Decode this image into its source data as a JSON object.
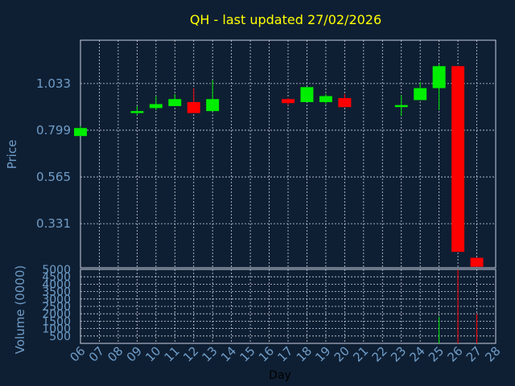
{
  "chart_data": [
    {
      "type": "candlestick",
      "title": "QH - last updated 27/02/2026",
      "ylabel": "Price",
      "ylim": [
        0.11,
        1.25
      ],
      "yticks": [
        "0.331",
        "0.565",
        "0.799",
        "1.033"
      ],
      "ytick_values": [
        0.331,
        0.565,
        0.799,
        1.033
      ],
      "x": [
        6,
        7,
        8,
        9,
        10,
        11,
        12,
        13,
        14,
        15,
        16,
        17,
        18,
        19,
        20,
        21,
        22,
        23,
        24,
        25,
        26,
        27,
        28
      ],
      "grid": true,
      "candles": [
        {
          "day": 6,
          "open": 0.77,
          "high": 0.82,
          "low": 0.77,
          "close": 0.81
        },
        {
          "day": 9,
          "open": 0.885,
          "high": 0.92,
          "low": 0.875,
          "close": 0.895
        },
        {
          "day": 10,
          "open": 0.91,
          "high": 0.97,
          "low": 0.9,
          "close": 0.93
        },
        {
          "day": 11,
          "open": 0.92,
          "high": 0.98,
          "low": 0.92,
          "close": 0.955
        },
        {
          "day": 12,
          "open": 0.94,
          "high": 1.01,
          "low": 0.89,
          "close": 0.885
        },
        {
          "day": 13,
          "open": 0.895,
          "high": 1.05,
          "low": 0.895,
          "close": 0.955
        },
        {
          "day": 17,
          "open": 0.955,
          "high": 0.96,
          "low": 0.925,
          "close": 0.935
        },
        {
          "day": 18,
          "open": 0.94,
          "high": 1.015,
          "low": 0.94,
          "close": 1.015
        },
        {
          "day": 19,
          "open": 0.94,
          "high": 0.98,
          "low": 0.93,
          "close": 0.97
        },
        {
          "day": 20,
          "open": 0.96,
          "high": 0.98,
          "low": 0.915,
          "close": 0.915
        },
        {
          "day": 23,
          "open": 0.915,
          "high": 0.975,
          "low": 0.87,
          "close": 0.925
        },
        {
          "day": 24,
          "open": 0.95,
          "high": 1.04,
          "low": 0.95,
          "close": 1.01
        },
        {
          "day": 25,
          "open": 1.01,
          "high": 1.13,
          "low": 0.9,
          "close": 1.12
        },
        {
          "day": 26,
          "open": 1.12,
          "high": 1.12,
          "low": 0.19,
          "close": 0.19
        },
        {
          "day": 27,
          "open": 0.16,
          "high": 0.16,
          "low": 0.115,
          "close": 0.115
        }
      ],
      "colors": {
        "up": "#00ee00",
        "down": "#ff0000"
      }
    },
    {
      "type": "bar",
      "ylabel": "Volume (0000)",
      "xlabel": "Day",
      "ylim": [
        0,
        5000
      ],
      "yticks": [
        "500",
        "1000",
        "1500",
        "2000",
        "2500",
        "3000",
        "3500",
        "4000",
        "4500",
        "5000"
      ],
      "ytick_values": [
        500,
        1000,
        1500,
        2000,
        2500,
        3000,
        3500,
        4000,
        4500,
        5000
      ],
      "x": [
        6,
        7,
        8,
        9,
        10,
        11,
        12,
        13,
        14,
        15,
        16,
        17,
        18,
        19,
        20,
        21,
        22,
        23,
        24,
        25,
        26,
        27,
        28
      ],
      "xticklabels": [
        "06",
        "07",
        "08",
        "09",
        "10",
        "11",
        "12",
        "13",
        "14",
        "15",
        "16",
        "17",
        "18",
        "19",
        "20",
        "21",
        "22",
        "23",
        "24",
        "25",
        "26",
        "27",
        "28"
      ],
      "volumes": [
        {
          "day": 25,
          "value": 1800,
          "direction": "up"
        },
        {
          "day": 26,
          "value": 5000,
          "direction": "down"
        },
        {
          "day": 27,
          "value": 2000,
          "direction": "down"
        }
      ]
    }
  ],
  "colors": {
    "background": "#0f1f33",
    "title": "#ffff00",
    "axis_text": "#6f9dc8",
    "label_text": "#000000",
    "grid": "#c8d2e0",
    "frame": "#c8d2e0"
  }
}
